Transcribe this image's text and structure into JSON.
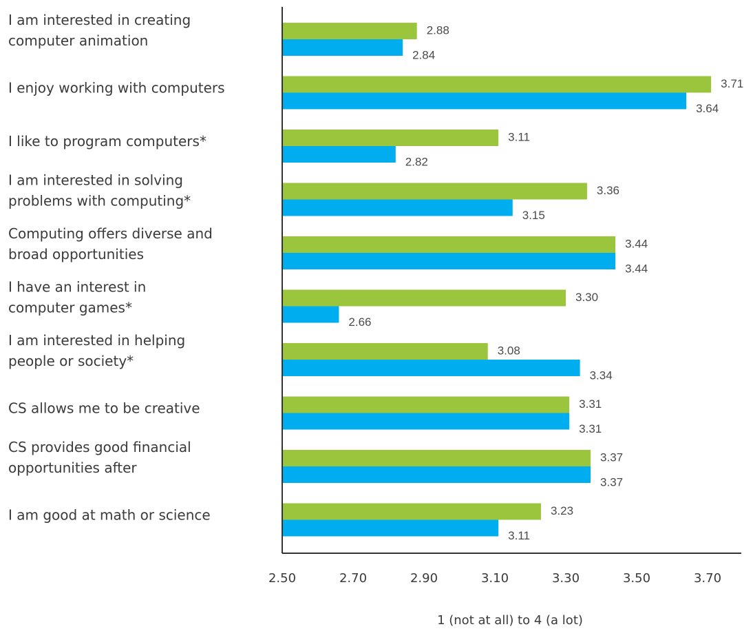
{
  "chart_data": {
    "type": "bar",
    "orientation": "horizontal",
    "title": "",
    "xlabel": "1 (not at all) to 4 (a lot)",
    "ylabel": "",
    "xlim": [
      2.5,
      3.8
    ],
    "ticks": [
      "2.50",
      "2.70",
      "2.90",
      "3.10",
      "3.30",
      "3.50",
      "3.70"
    ],
    "tick_values": [
      2.5,
      2.7,
      2.9,
      3.1,
      3.3,
      3.5,
      3.7
    ],
    "grid": false,
    "legend": "none",
    "categories": [
      [
        "I am interested in creating",
        "computer animation"
      ],
      [
        "I enjoy working with computers"
      ],
      [
        "I like to program computers*"
      ],
      [
        "I am interested in solving",
        "problems with computing*"
      ],
      [
        "Computing offers diverse and",
        "broad opportunities"
      ],
      [
        "I have an interest in",
        "computer games*"
      ],
      [
        "I am interested in helping",
        "people or society*"
      ],
      [
        "CS allows me to be creative"
      ],
      [
        "CS provides good financial",
        "opportunities after"
      ],
      [
        "I am good at math or science"
      ]
    ],
    "series": [
      {
        "color": "#9bc53d",
        "values": [
          2.88,
          3.71,
          3.11,
          3.36,
          3.44,
          3.3,
          3.08,
          3.31,
          3.37,
          3.23
        ],
        "labels": [
          "2.88",
          "3.71",
          "3.11",
          "3.36",
          "3.44",
          "3.30",
          "3.08",
          "3.31",
          "3.37",
          "3.23"
        ]
      },
      {
        "color": "#00adef",
        "values": [
          2.84,
          3.64,
          2.82,
          3.15,
          3.44,
          2.66,
          3.34,
          3.31,
          3.37,
          3.11
        ],
        "labels": [
          "2.84",
          "3.64",
          "2.82",
          "3.15",
          "3.44",
          "2.66",
          "3.34",
          "3.31",
          "3.37",
          "3.11"
        ]
      }
    ]
  }
}
